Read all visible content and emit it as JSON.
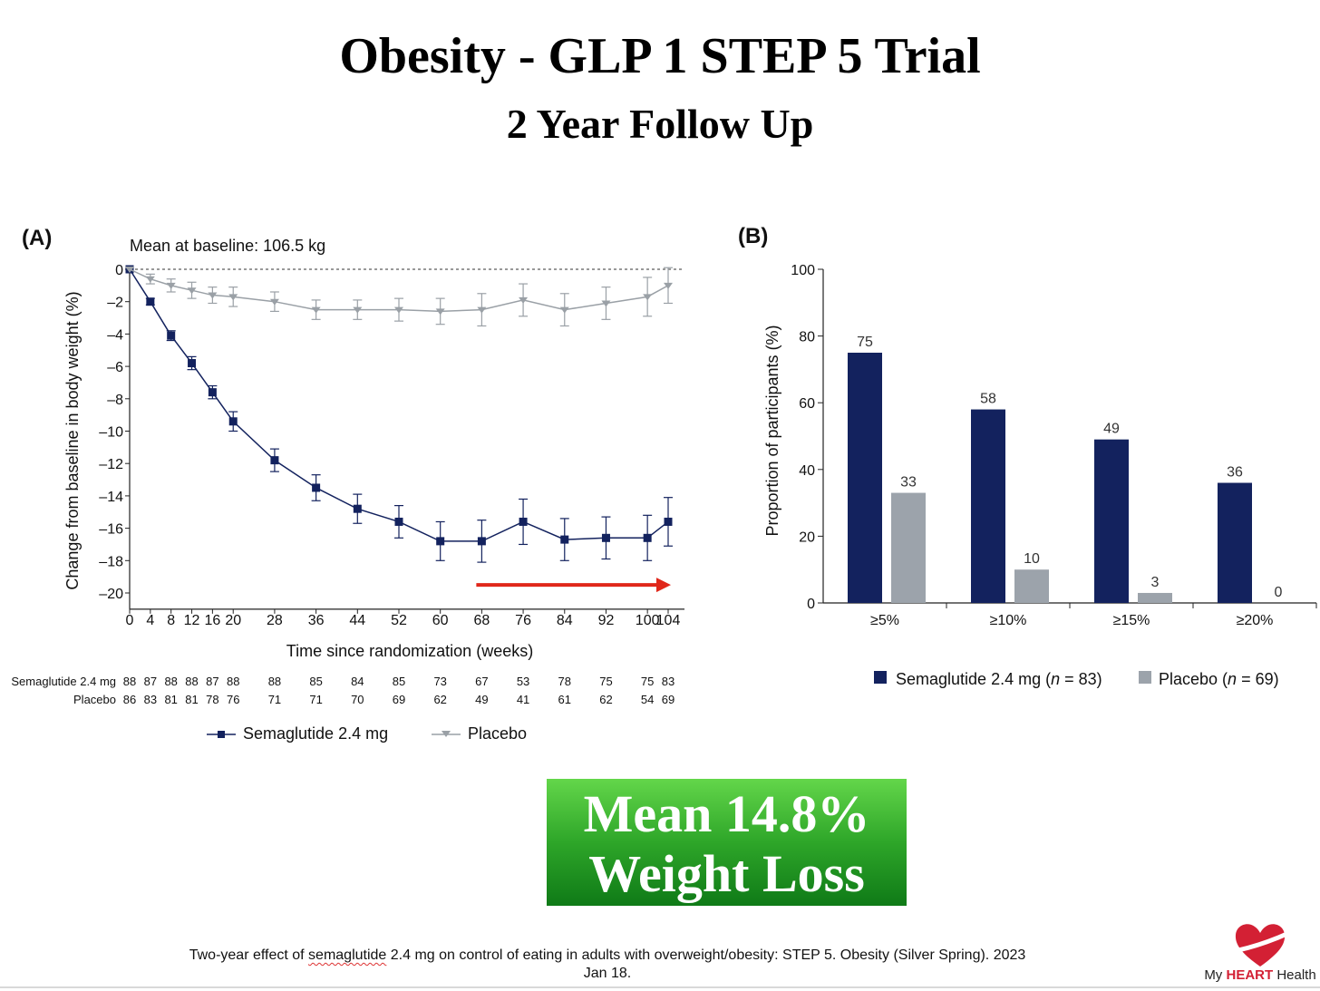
{
  "header": {
    "title": "Obesity - GLP 1 STEP 5 Trial",
    "subtitle": "2 Year Follow Up"
  },
  "colors": {
    "semaglutide": "#13225e",
    "placebo_line": "#9aa0a6",
    "placebo_bar": "#9ca3ab",
    "arrow": "#e0271a",
    "callout_top": "#63d64a",
    "callout_bottom": "#0f7a17",
    "brand": "#d32034"
  },
  "chart_data": [
    {
      "type": "line",
      "panel_label": "(A)",
      "annotation": "Mean at baseline: 106.5 kg",
      "xlabel": "Time since randomization (weeks)",
      "ylabel": "Change from baseline in body weight (%)",
      "ylim": [
        -21,
        0
      ],
      "y_ticks": [
        "0",
        "–2",
        "–4",
        "–6",
        "–8",
        "–10",
        "–12",
        "–14",
        "–16",
        "–18",
        "–20"
      ],
      "x": [
        0,
        4,
        8,
        12,
        16,
        20,
        28,
        36,
        44,
        52,
        60,
        68,
        76,
        84,
        92,
        100,
        104
      ],
      "x_ticks": [
        "0",
        "4",
        "8",
        "12",
        "16",
        "20",
        "28",
        "36",
        "44",
        "52",
        "60",
        "68",
        "76",
        "84",
        "92",
        "100",
        "104"
      ],
      "series": [
        {
          "name": "Semaglutide 2.4 mg",
          "values": [
            0,
            -2.0,
            -4.1,
            -5.8,
            -7.6,
            -9.4,
            -11.8,
            -13.5,
            -14.8,
            -15.6,
            -16.8,
            -16.8,
            -15.6,
            -16.7,
            -16.6,
            -16.6,
            -15.6
          ],
          "errors": [
            0,
            0.2,
            0.3,
            0.4,
            0.4,
            0.6,
            0.7,
            0.8,
            0.9,
            1.0,
            1.2,
            1.3,
            1.4,
            1.3,
            1.3,
            1.4,
            1.5
          ]
        },
        {
          "name": "Placebo",
          "values": [
            0,
            -0.6,
            -1.0,
            -1.3,
            -1.6,
            -1.7,
            -2.0,
            -2.5,
            -2.5,
            -2.5,
            -2.6,
            -2.5,
            -1.9,
            -2.5,
            -2.1,
            -1.7,
            -1.0
          ],
          "errors": [
            0,
            0.3,
            0.4,
            0.5,
            0.5,
            0.6,
            0.6,
            0.6,
            0.6,
            0.7,
            0.8,
            1.0,
            1.0,
            1.0,
            1.0,
            1.2,
            1.1
          ]
        }
      ],
      "at_risk": [
        {
          "label": "Semaglutide 2.4 mg",
          "counts": [
            "88",
            "87",
            "88",
            "88",
            "87",
            "88",
            "88",
            "85",
            "84",
            "85",
            "73",
            "67",
            "53",
            "78",
            "75",
            "75",
            "83"
          ]
        },
        {
          "label": "Placebo",
          "counts": [
            "86",
            "83",
            "81",
            "81",
            "78",
            "76",
            "71",
            "71",
            "70",
            "69",
            "62",
            "49",
            "41",
            "61",
            "62",
            "54",
            "69"
          ]
        }
      ],
      "legend": [
        "Semaglutide 2.4 mg",
        "Placebo"
      ]
    },
    {
      "type": "bar",
      "panel_label": "(B)",
      "ylabel": "Proportion of participants (%)",
      "ylim": [
        0,
        100
      ],
      "y_ticks": [
        "0",
        "20",
        "40",
        "60",
        "80",
        "100"
      ],
      "categories": [
        "≥5%",
        "≥10%",
        "≥15%",
        "≥20%"
      ],
      "series": [
        {
          "name": "Semaglutide 2.4 mg",
          "values": [
            75,
            58,
            49,
            36
          ],
          "labels": [
            "75",
            "58",
            "49",
            "36"
          ]
        },
        {
          "name": "Placebo",
          "values": [
            33,
            10,
            3,
            0
          ],
          "labels": [
            "33",
            "10",
            "3",
            "0"
          ]
        }
      ],
      "legend": {
        "semaglutide": {
          "prefix": "Semaglutide 2.4 mg (",
          "n": "n",
          "suffix": " = 83)"
        },
        "placebo": {
          "prefix": "Placebo (",
          "n": "n",
          "suffix": " = 69)"
        }
      }
    }
  ],
  "callout": {
    "line1": "Mean 14.8%",
    "line2": "Weight Loss"
  },
  "citation": {
    "pre": "Two-year effect of ",
    "word": "semaglutide",
    "post": " 2.4 mg on control of eating in adults with overweight/obesity: STEP 5. Obesity (Silver Spring). 2023 Jan 18."
  },
  "logo": {
    "my": "My ",
    "heart": "HEART",
    "health": " Health"
  }
}
